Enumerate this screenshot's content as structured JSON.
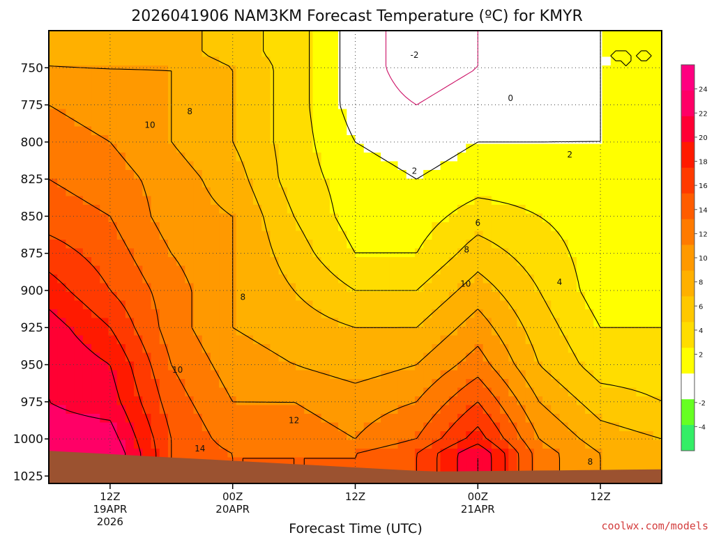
{
  "chart_data": {
    "type": "heatmap",
    "title": "2026041906 NAM3KM Forecast Temperature (ºC) for KMYR",
    "xlabel": "Forecast Time (UTC)",
    "ylabel": "",
    "credit": "coolwx.com/models",
    "y_axis": {
      "ticks": [
        750,
        775,
        800,
        825,
        850,
        875,
        900,
        925,
        950,
        975,
        1000,
        1025
      ],
      "range": [
        725,
        1030
      ],
      "reversed": true,
      "units": "hPa"
    },
    "x_axis": {
      "range_hours": [
        0,
        60
      ],
      "ticks": [
        {
          "hour": 6,
          "line1": "12Z",
          "line2": "19APR",
          "line3": "2026"
        },
        {
          "hour": 18,
          "line1": "00Z",
          "line2": "20APR",
          "line3": ""
        },
        {
          "hour": 30,
          "line1": "12Z",
          "line2": "",
          "line3": ""
        },
        {
          "hour": 42,
          "line1": "00Z",
          "line2": "21APR",
          "line3": ""
        },
        {
          "hour": 54,
          "line1": "12Z",
          "line2": "",
          "line3": ""
        }
      ]
    },
    "colorbar": {
      "bands": [
        {
          "lo": -6,
          "hi": -4,
          "color": "#33ee66"
        },
        {
          "lo": -4,
          "hi": -2,
          "color": "#66ff22"
        },
        {
          "lo": -2,
          "hi": 2,
          "color": "#ffffff"
        },
        {
          "lo": 2,
          "hi": 4,
          "color": "#ffff00"
        },
        {
          "lo": 4,
          "hi": 6,
          "color": "#ffdd00"
        },
        {
          "lo": 6,
          "hi": 8,
          "color": "#ffc800"
        },
        {
          "lo": 8,
          "hi": 10,
          "color": "#ffb000"
        },
        {
          "lo": 10,
          "hi": 12,
          "color": "#ff9900"
        },
        {
          "lo": 12,
          "hi": 14,
          "color": "#ff7a00"
        },
        {
          "lo": 14,
          "hi": 16,
          "color": "#ff5c00"
        },
        {
          "lo": 16,
          "hi": 18,
          "color": "#ff3a00"
        },
        {
          "lo": 18,
          "hi": 20,
          "color": "#ff1a00"
        },
        {
          "lo": 20,
          "hi": 22,
          "color": "#ff0033"
        },
        {
          "lo": 22,
          "hi": 24,
          "color": "#ff0066"
        },
        {
          "lo": 24,
          "hi": 26,
          "color": "#ff0080"
        }
      ],
      "labels": [
        -4,
        -2,
        2,
        4,
        6,
        8,
        10,
        12,
        14,
        16,
        18,
        20,
        22,
        24
      ]
    },
    "contour_labels": [
      {
        "text": "-2",
        "hour": 35.8,
        "p": 741
      },
      {
        "text": "0",
        "hour": 45.2,
        "p": 770
      },
      {
        "text": "2",
        "hour": 35.8,
        "p": 819
      },
      {
        "text": "2",
        "hour": 51.0,
        "p": 808
      },
      {
        "text": "4",
        "hour": 50.0,
        "p": 894
      },
      {
        "text": "6",
        "hour": 42.0,
        "p": 854
      },
      {
        "text": "8",
        "hour": 13.8,
        "p": 779
      },
      {
        "text": "8",
        "hour": 19.0,
        "p": 904
      },
      {
        "text": "8",
        "hour": 40.9,
        "p": 872
      },
      {
        "text": "8",
        "hour": 53.0,
        "p": 1015
      },
      {
        "text": "10",
        "hour": 9.9,
        "p": 788
      },
      {
        "text": "10",
        "hour": 40.8,
        "p": 895
      },
      {
        "text": "10",
        "hour": 12.6,
        "p": 953
      },
      {
        "text": "12",
        "hour": 24.0,
        "p": 987
      },
      {
        "text": "14",
        "hour": 14.8,
        "p": 1006
      }
    ],
    "temperature_samples_C": {
      "pressure_levels": [
        740,
        750,
        775,
        800,
        825,
        850,
        875,
        900,
        925,
        950,
        975,
        1000,
        1010
      ],
      "hours": [
        0,
        6,
        12,
        18,
        24,
        30,
        36,
        42,
        48,
        54,
        60
      ],
      "values": [
        [
          10,
          9,
          9,
          7,
          5,
          1,
          -1,
          0,
          0,
          2,
          2
        ],
        [
          10,
          10,
          10,
          8,
          5,
          1,
          -1,
          0,
          0,
          2,
          2
        ],
        [
          12,
          11,
          10,
          8,
          5,
          1,
          0,
          1,
          1,
          2,
          3
        ],
        [
          13,
          12,
          10,
          8,
          5,
          2,
          1,
          2,
          2,
          2,
          3
        ],
        [
          14,
          13,
          11,
          9,
          5,
          3,
          2,
          3,
          3,
          3,
          3
        ],
        [
          15,
          14,
          11,
          10,
          6,
          3,
          3,
          5,
          4,
          3,
          3
        ],
        [
          17,
          15,
          12,
          10,
          7,
          4,
          4,
          7,
          5,
          3,
          3
        ],
        [
          19,
          16,
          13,
          10,
          8,
          6,
          6,
          9,
          6,
          3,
          3
        ],
        [
          21,
          18,
          13,
          10,
          9,
          8,
          8,
          11,
          7,
          4,
          4
        ],
        [
          22,
          20,
          14,
          11,
          10,
          9,
          10,
          13,
          8,
          5,
          5
        ],
        [
          22,
          21,
          15,
          12,
          12,
          11,
          12,
          16,
          10,
          7,
          6
        ],
        [
          23,
          23,
          16,
          13,
          13,
          12,
          14,
          19,
          12,
          9,
          8
        ],
        [
          23,
          24,
          16,
          14,
          14,
          14,
          16,
          22,
          13,
          10,
          9
        ]
      ]
    },
    "terrain": {
      "color": "#9b5230",
      "top_p_start": 1008,
      "top_p_end": 1022
    },
    "grid": true
  }
}
